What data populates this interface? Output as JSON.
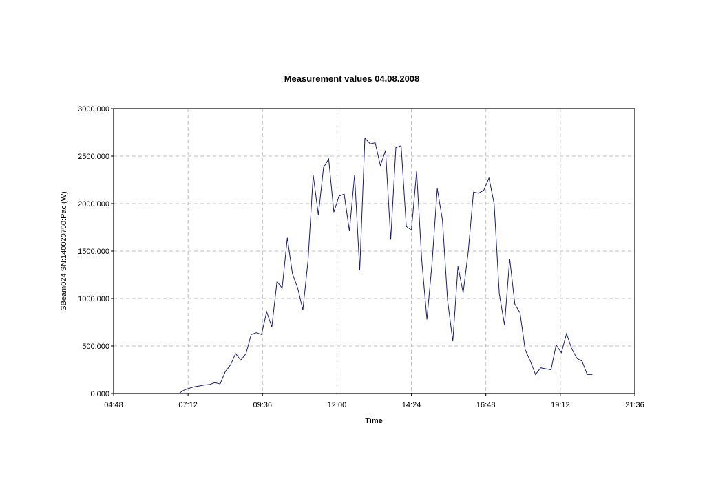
{
  "chart_data": {
    "type": "line",
    "title": "Measurement values 04.08.2008",
    "xlabel": "Time",
    "ylabel": "SBeam024 SN:140020750:Pac (W)",
    "xlim": [
      "04:48",
      "21:36"
    ],
    "ylim": [
      0,
      3000
    ],
    "x_ticks": [
      "04:48",
      "07:12",
      "09:36",
      "12:00",
      "14:24",
      "16:48",
      "19:12",
      "21:36"
    ],
    "y_ticks": [
      "0.000",
      "500.000",
      "1000.000",
      "1500.000",
      "2000.000",
      "2500.000",
      "3000.000"
    ],
    "grid": true,
    "legend": false,
    "colors": {
      "line": "#1a1a80",
      "grid": "#c0c0c0",
      "frame": "#000000"
    },
    "series": [
      {
        "x": [
          "06:54",
          "07:04",
          "07:14",
          "07:24",
          "07:34",
          "07:44",
          "07:54",
          "08:04",
          "08:14",
          "08:24",
          "08:34",
          "08:44",
          "08:54",
          "09:04",
          "09:14",
          "09:24",
          "09:34",
          "09:44",
          "09:54",
          "10:04",
          "10:14",
          "10:24",
          "10:34",
          "10:44",
          "10:54",
          "11:04",
          "11:14",
          "11:24",
          "11:34",
          "11:44",
          "11:54",
          "12:04",
          "12:14",
          "12:24",
          "12:34",
          "12:44",
          "12:54",
          "13:04",
          "13:14",
          "13:24",
          "13:34",
          "13:44",
          "13:54",
          "14:04",
          "14:14",
          "14:24",
          "14:34",
          "14:44",
          "14:54",
          "15:04",
          "15:14",
          "15:24",
          "15:34",
          "15:44",
          "15:54",
          "16:04",
          "16:14",
          "16:24",
          "16:34",
          "16:44",
          "16:54",
          "17:04",
          "17:14",
          "17:24",
          "17:34",
          "17:44",
          "17:54",
          "18:04",
          "18:14",
          "18:24",
          "18:34",
          "18:44",
          "18:54",
          "19:04",
          "19:14",
          "19:24",
          "19:34",
          "19:44",
          "19:54",
          "20:04",
          "20:14"
        ],
        "values": [
          0,
          35,
          55,
          70,
          80,
          90,
          95,
          115,
          100,
          230,
          300,
          420,
          350,
          420,
          620,
          640,
          620,
          860,
          700,
          1180,
          1110,
          1640,
          1260,
          1110,
          880,
          1400,
          2300,
          1880,
          2380,
          2470,
          1910,
          2080,
          2100,
          1710,
          2300,
          1300,
          2690,
          2630,
          2640,
          2400,
          2560,
          1620,
          2590,
          2610,
          1760,
          1720,
          2340,
          1400,
          780,
          1380,
          2160,
          1830,
          980,
          550,
          1340,
          1060,
          1500,
          2120,
          2110,
          2140,
          2270,
          2000,
          1050,
          720,
          1420,
          940,
          850,
          460,
          340,
          200,
          270,
          260,
          250,
          510,
          430,
          630,
          470,
          370,
          340,
          200,
          200
        ]
      }
    ]
  }
}
